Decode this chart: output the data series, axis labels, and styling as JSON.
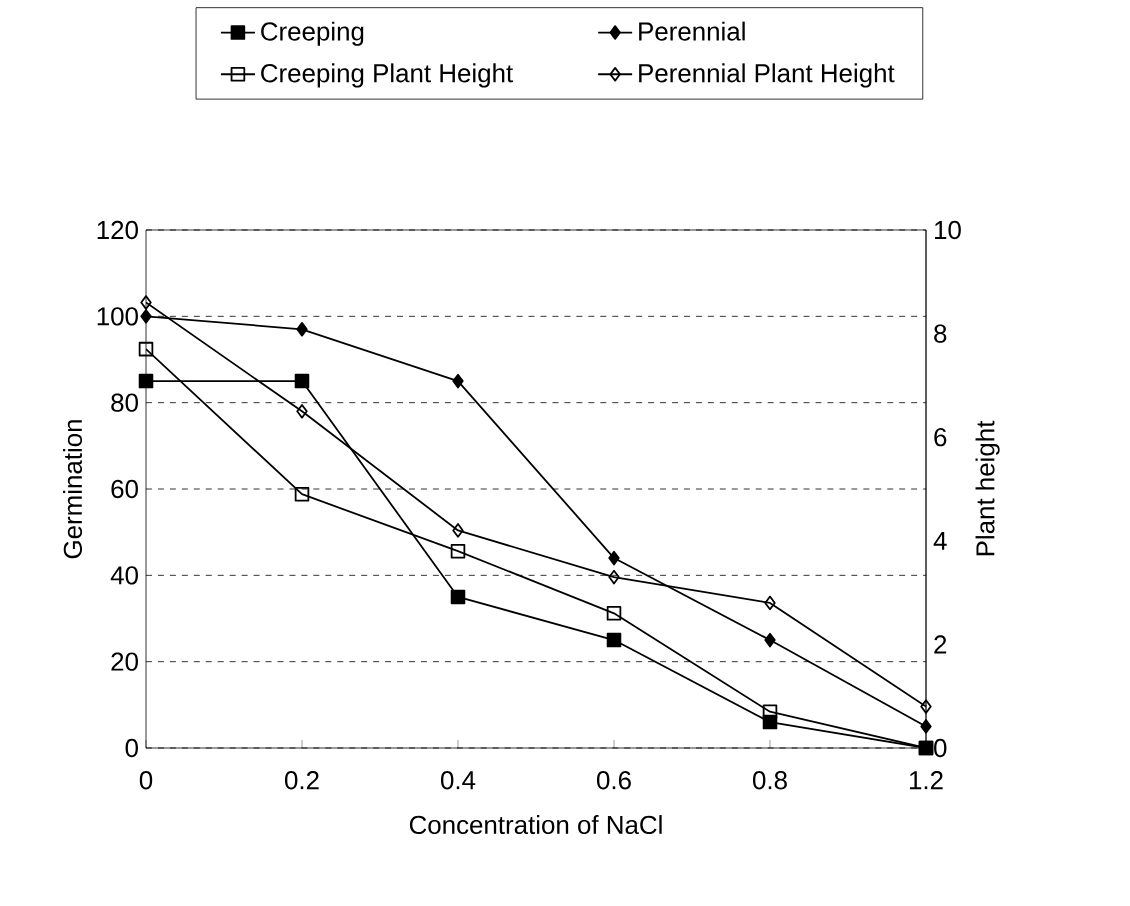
{
  "chart_data": {
    "type": "line",
    "xlabel": "Concentration of NaCl",
    "ylabel": "Germination",
    "y2label": "Plant height",
    "categories": [
      "0",
      "0.2",
      "0.4",
      "0.6",
      "0.8",
      "1.2"
    ],
    "series": [
      {
        "name": "Creeping",
        "color": "#000000",
        "marker": "square",
        "values": [
          85,
          85,
          35,
          25,
          6,
          0
        ]
      },
      {
        "name": "Perennial",
        "color": "#000000",
        "marker": "diamond",
        "values": [
          100,
          97,
          85,
          44,
          25,
          5
        ]
      },
      {
        "name": "Creeping Plant Height",
        "color": "#000000",
        "marker": "square",
        "axis": "y2",
        "values": [
          7.7,
          4.9,
          3.8,
          2.6,
          0.7,
          0
        ]
      },
      {
        "name": "Perennial Plant Height",
        "color": "#000000",
        "marker": "diamond",
        "axis": "y2",
        "values": [
          8.6,
          6.5,
          4.2,
          3.3,
          2.8,
          0.8
        ]
      }
    ],
    "ylim": [
      0,
      120
    ],
    "yticks": [
      0,
      20,
      40,
      60,
      80,
      100,
      120
    ],
    "y2lim": [
      0,
      10
    ],
    "y2ticks": [
      0,
      2,
      4,
      6,
      8,
      10
    ],
    "grid": "y",
    "legend": "top",
    "line_style": "solid"
  }
}
